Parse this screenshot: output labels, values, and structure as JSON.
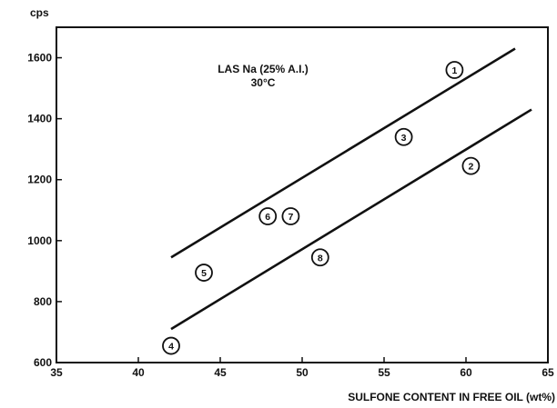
{
  "chart_data": {
    "type": "scatter",
    "title": "",
    "xlabel": "SULFONE CONTENT IN FREE OIL (wt%)",
    "ylabel": "cps",
    "xlim": [
      35,
      65
    ],
    "ylim": [
      600,
      1700
    ],
    "x_ticks": [
      35,
      40,
      45,
      50,
      55,
      60,
      65
    ],
    "y_ticks": [
      600,
      800,
      1000,
      1200,
      1400,
      1600
    ],
    "grid": false,
    "annotation_lines": [
      "LAS Na (25% A.I.)",
      "30°C"
    ],
    "points": [
      {
        "label": "1",
        "x": 59.3,
        "y": 1560
      },
      {
        "label": "2",
        "x": 60.3,
        "y": 1245
      },
      {
        "label": "3",
        "x": 56.2,
        "y": 1340
      },
      {
        "label": "4",
        "x": 42.0,
        "y": 655
      },
      {
        "label": "5",
        "x": 44.0,
        "y": 895
      },
      {
        "label": "6",
        "x": 47.9,
        "y": 1080
      },
      {
        "label": "7",
        "x": 49.3,
        "y": 1080
      },
      {
        "label": "8",
        "x": 51.1,
        "y": 945
      }
    ],
    "lines": [
      {
        "x": [
          42,
          63
        ],
        "y": [
          945,
          1630
        ]
      },
      {
        "x": [
          42,
          64
        ],
        "y": [
          710,
          1430
        ]
      }
    ]
  }
}
